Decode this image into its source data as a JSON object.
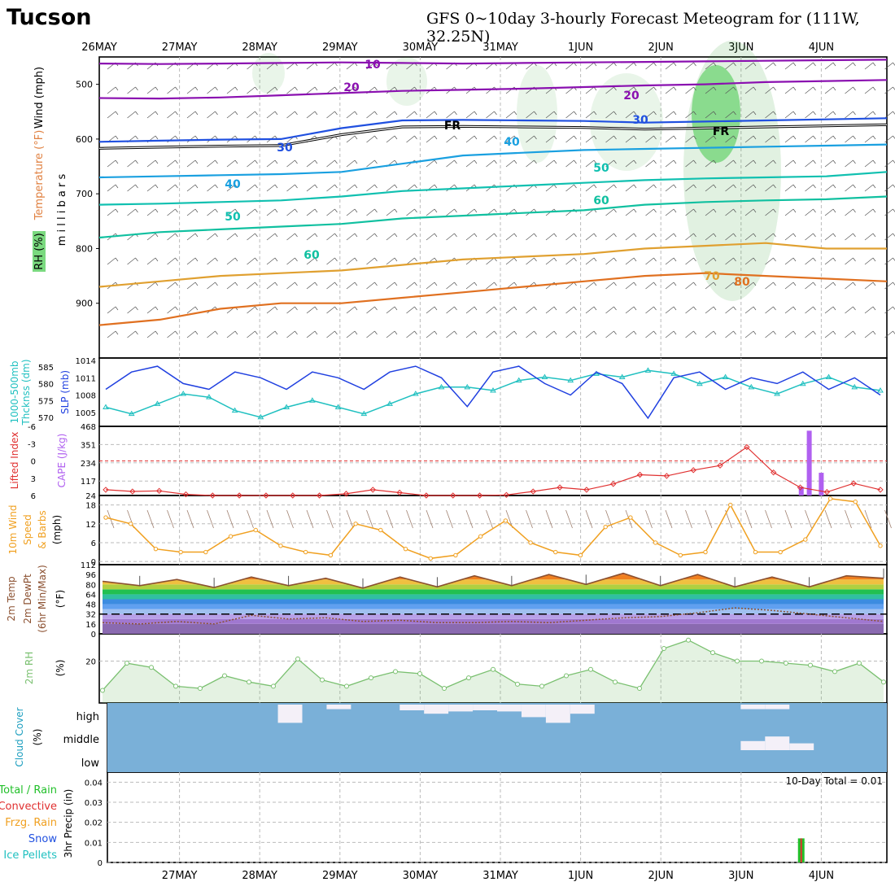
{
  "header": {
    "city": "Tucson",
    "title": "GFS 0~10day 3-hourly Forecast Meteogram for (111W, 32.25N)"
  },
  "colors": {
    "rh_green": "#22c02a",
    "thickness": "#20c0c0",
    "slp": "#2040e0",
    "lifted": "#e03030",
    "cape": "#b060f0",
    "wind10": "#f0a020",
    "temp_brown": "#8b5030",
    "rh2m": "#7ac070",
    "cloud": "#7ab0d8",
    "precip_green": "#22c02a",
    "precip_red": "#e03030"
  },
  "chart_data": [
    {
      "id": "upper-air",
      "type": "line",
      "x_top_labels": [
        "26MAY",
        "27MAY",
        "28MAY",
        "29MAY",
        "30MAY",
        "31MAY",
        "1JUN",
        "2JUN",
        "3JUN",
        "4JUN"
      ],
      "left_labels": [
        {
          "text": "Wind (mph)",
          "color": "#000000"
        },
        {
          "text": "Temperature (°F)",
          "color": "#e08040"
        },
        {
          "text": "RH (%)",
          "color": "#000000"
        },
        {
          "text": "m i l l i b a r s",
          "color": "#000000"
        }
      ],
      "ylabel_parts": [
        "Temperature",
        "(°F)",
        "Wind (mph)",
        "RH (%)",
        "m i l l i b a r s"
      ],
      "yticks": [
        500,
        600,
        700,
        800,
        900
      ],
      "ylim": [
        1000,
        450
      ],
      "isotherm_labels": [
        {
          "text": "10",
          "color": "#8a10b0"
        },
        {
          "text": "20",
          "color": "#8a10b0"
        },
        {
          "text": "20",
          "color": "#8a10b0"
        },
        {
          "text": "30",
          "color": "#2050e0"
        },
        {
          "text": "30",
          "color": "#2050e0"
        },
        {
          "text": "40",
          "color": "#1aa0e0"
        },
        {
          "text": "40",
          "color": "#1aa0e0"
        },
        {
          "text": "50",
          "color": "#10c0b0"
        },
        {
          "text": "50",
          "color": "#10c0b0"
        },
        {
          "text": "60",
          "color": "#10c0a0"
        },
        {
          "text": "60",
          "color": "#10c0a0"
        },
        {
          "text": "70",
          "color": "#e0a030"
        },
        {
          "text": "80",
          "color": "#e07020"
        },
        {
          "text": "FR",
          "color": "#000000"
        },
        {
          "text": "FR",
          "color": "#000000"
        }
      ],
      "series": [
        {
          "name": "10",
          "color": "#8a10b0",
          "values": [
            462,
            463,
            462,
            461,
            460,
            461,
            462,
            461,
            460,
            459,
            458,
            457,
            456,
            455
          ]
        },
        {
          "name": "20",
          "color": "#8a10b0",
          "values": [
            525,
            526,
            524,
            520,
            516,
            512,
            510,
            508,
            505,
            502,
            500,
            496,
            494,
            492
          ]
        },
        {
          "name": "30",
          "color": "#2050e0",
          "values": [
            605,
            603,
            601,
            600,
            580,
            566,
            565,
            566,
            567,
            570,
            568,
            566,
            564,
            562
          ]
        },
        {
          "name": "40",
          "color": "#1aa0e0",
          "values": [
            670,
            668,
            666,
            664,
            660,
            645,
            630,
            625,
            620,
            618,
            616,
            614,
            612,
            610
          ]
        },
        {
          "name": "50",
          "color": "#10c0b0",
          "values": [
            720,
            718,
            715,
            712,
            705,
            695,
            690,
            685,
            680,
            675,
            672,
            670,
            668,
            660
          ]
        },
        {
          "name": "60",
          "color": "#10c0a0",
          "values": [
            780,
            770,
            765,
            760,
            755,
            745,
            740,
            735,
            730,
            720,
            715,
            712,
            710,
            705
          ]
        },
        {
          "name": "70",
          "color": "#e0a030",
          "values": [
            870,
            860,
            850,
            845,
            840,
            830,
            820,
            815,
            810,
            800,
            795,
            790,
            800,
            800
          ]
        },
        {
          "name": "80",
          "color": "#e07020",
          "values": [
            940,
            930,
            910,
            900,
            900,
            890,
            880,
            870,
            860,
            850,
            845,
            850,
            855,
            860
          ]
        }
      ]
    },
    {
      "id": "slp-thickness",
      "type": "line",
      "ylabel_left": [
        "1000-500mb",
        "Thcknss (dm)"
      ],
      "ylabel_right": "SLP (mb)",
      "yticks_left": [
        570,
        575,
        580,
        585
      ],
      "yticks_right": [
        1005,
        1008,
        1011,
        1014
      ],
      "series": [
        {
          "name": "SLP",
          "color": "#2040e0",
          "values": [
            1009,
            1012,
            1013,
            1010,
            1009,
            1012,
            1011,
            1009,
            1012,
            1011,
            1009,
            1012,
            1013,
            1011,
            1006,
            1012,
            1013,
            1010,
            1008,
            1012,
            1010,
            1004,
            1011,
            1012,
            1009,
            1011,
            1010,
            1012,
            1009,
            1011,
            1008
          ]
        },
        {
          "name": "Thickness",
          "color": "#20c0c0",
          "values": [
            573,
            571,
            574,
            577,
            576,
            572,
            570,
            573,
            575,
            573,
            571,
            574,
            577,
            579,
            579,
            578,
            581,
            582,
            581,
            583,
            582,
            584,
            583,
            580,
            582,
            579,
            577,
            580,
            582,
            579,
            578
          ]
        }
      ]
    },
    {
      "id": "cape-li",
      "type": "bar",
      "ylabel_left": "Lifted Index",
      "ylabel_right": "CAPE (J/kg)",
      "yticks_left": [
        -6,
        -3,
        0,
        3,
        6
      ],
      "yticks_right": [
        24,
        117,
        234,
        351,
        468
      ],
      "cape_bars": [
        {
          "x": 8.75,
          "value": 80
        },
        {
          "x": 8.85,
          "value": 440
        },
        {
          "x": 9.0,
          "value": 170
        }
      ],
      "series": [
        {
          "name": "Lifted Index",
          "color": "#e03030",
          "values": [
            5,
            5.3,
            5.2,
            5.8,
            6,
            6,
            6,
            6,
            6,
            5.7,
            5.0,
            5.5,
            6,
            6,
            6,
            5.9,
            5.3,
            4.6,
            5.0,
            4.0,
            2.4,
            2.6,
            1.6,
            0.8,
            -2.4,
            2.0,
            4.6,
            5.4,
            3.9,
            5.0
          ]
        }
      ]
    },
    {
      "id": "wind10m",
      "type": "line",
      "ylabel": [
        "10m Wind",
        "Speed",
        "& Barbs",
        "(mph)"
      ],
      "yticks": [
        0,
        6,
        12,
        18
      ],
      "series": [
        {
          "name": "10m Wind",
          "color": "#f0a020",
          "values": [
            14,
            12,
            4,
            3,
            3,
            8,
            10,
            5,
            3,
            2,
            12,
            10,
            4,
            1,
            2,
            8,
            13,
            6,
            3,
            2,
            11,
            14,
            6,
            2,
            3,
            18,
            3,
            3,
            7,
            20,
            19,
            5
          ]
        }
      ]
    },
    {
      "id": "temp-dewpt",
      "type": "area",
      "ylabel": [
        "2m Temp",
        "2m DewPt",
        "(6hr Min/Max)",
        "(°F)"
      ],
      "yticks": [
        0,
        16,
        32,
        48,
        64,
        80,
        96,
        112
      ],
      "series": [
        {
          "name": "2m Temp",
          "color": "#8b5030",
          "values": [
            85,
            78,
            88,
            75,
            92,
            78,
            90,
            74,
            92,
            76,
            94,
            78,
            96,
            80,
            98,
            78,
            96,
            76,
            92,
            76,
            94,
            90
          ]
        },
        {
          "name": "2m DewPt",
          "color": "#8b5030",
          "values": [
            18,
            16,
            20,
            16,
            30,
            24,
            26,
            20,
            22,
            18,
            18,
            20,
            18,
            22,
            26,
            28,
            34,
            42,
            38,
            32,
            26,
            20
          ]
        }
      ]
    },
    {
      "id": "rh2m",
      "type": "area",
      "ylabel": [
        "2m RH",
        "(%)"
      ],
      "yticks": [
        20
      ],
      "series": [
        {
          "name": "2m RH",
          "color": "#7ac070",
          "values": [
            6,
            19,
            17,
            8,
            7,
            13,
            10,
            8,
            21,
            11,
            8,
            12,
            15,
            14,
            7,
            12,
            16,
            9,
            8,
            13,
            16,
            10,
            7,
            26,
            30,
            24,
            20,
            20,
            19,
            18,
            15,
            19,
            10
          ]
        }
      ]
    },
    {
      "id": "cloud-cover",
      "type": "bar",
      "ylabel": [
        "Cloud Cover",
        "(%)"
      ],
      "levels": [
        "high",
        "middle",
        "low"
      ],
      "high_cover": [
        0,
        0,
        0,
        0,
        0,
        0,
        0,
        80,
        0,
        20,
        0,
        0,
        25,
        40,
        30,
        25,
        30,
        55,
        80,
        40,
        0,
        0,
        0,
        0,
        0,
        0,
        20,
        20,
        0,
        0,
        0,
        0
      ],
      "middle_cover": [
        0,
        0,
        0,
        0,
        0,
        0,
        0,
        0,
        0,
        0,
        0,
        0,
        0,
        0,
        0,
        0,
        0,
        0,
        0,
        0,
        0,
        0,
        0,
        0,
        0,
        0,
        40,
        60,
        30,
        0,
        0,
        0
      ]
    },
    {
      "id": "precip",
      "type": "bar",
      "ylabel": "3hr Precip (in)",
      "legend": [
        {
          "text": "Total / Rain",
          "color": "#22c02a"
        },
        {
          "text": "Convective",
          "color": "#e03030"
        },
        {
          "text": "Frzg. Rain",
          "color": "#f0a020"
        },
        {
          "text": "Snow",
          "color": "#2050e0"
        },
        {
          "text": "Ice Pellets",
          "color": "#20c0c0"
        }
      ],
      "yticks": [
        0,
        0.01,
        0.02,
        0.03,
        0.04
      ],
      "total_label": "10-Day Total = 0.01",
      "x_bottom_labels": [
        "27MAY",
        "28MAY",
        "29MAY",
        "30MAY",
        "31MAY",
        "1JUN",
        "2JUN",
        "3JUN",
        "4JUN"
      ],
      "bars": [
        {
          "x": 8.75,
          "value": 0.012
        }
      ]
    }
  ]
}
